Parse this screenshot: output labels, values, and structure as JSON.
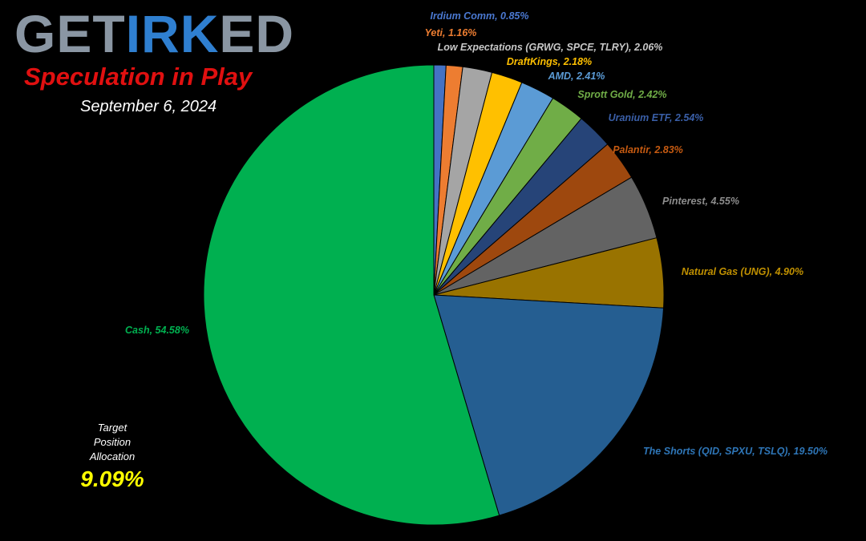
{
  "header": {
    "logo_part_a": "GET",
    "logo_part_b": "IRK",
    "logo_part_c": "ED",
    "subtitle": "Speculation in Play",
    "date": "September 6, 2024"
  },
  "target": {
    "line1": "Target",
    "line2": "Position",
    "line3": "Allocation",
    "value": "9.09%"
  },
  "chart_data": {
    "type": "pie",
    "start_angle_deg": 0,
    "direction": "clockwise",
    "slices": [
      {
        "label": "Irdium Comm, 0.85%",
        "value": 0.85,
        "color": "#4472c4"
      },
      {
        "label": "Yeti, 1.16%",
        "value": 1.16,
        "color": "#ed7d31"
      },
      {
        "label": "Low Expectations (GRWG, SPCE, TLRY), 2.06%",
        "value": 2.06,
        "color": "#a5a5a5"
      },
      {
        "label": "DraftKings, 2.18%",
        "value": 2.18,
        "color": "#ffc000"
      },
      {
        "label": "AMD, 2.41%",
        "value": 2.41,
        "color": "#5b9bd5"
      },
      {
        "label": "Sprott Gold, 2.42%",
        "value": 2.42,
        "color": "#70ad47"
      },
      {
        "label": "Uranium ETF, 2.54%",
        "value": 2.54,
        "color": "#264478"
      },
      {
        "label": "Palantir, 2.83%",
        "value": 2.83,
        "color": "#9e480e"
      },
      {
        "label": "Pinterest, 4.55%",
        "value": 4.55,
        "color": "#636363"
      },
      {
        "label": "Natural Gas (UNG), 4.90%",
        "value": 4.9,
        "color": "#997300"
      },
      {
        "label": "The Shorts (QID, SPXU, TSLQ), 19.50%",
        "value": 19.5,
        "color": "#255e91"
      },
      {
        "label": "Cash, 54.58%",
        "value": 54.58,
        "color": "#00b050"
      }
    ],
    "label_colors": {
      "Irdium Comm, 0.85%": "#4a78d0",
      "Yeti, 1.16%": "#ed7d31",
      "Low Expectations (GRWG, SPCE, TLRY), 2.06%": "#c8c8c8",
      "DraftKings, 2.18%": "#ffc000",
      "AMD, 2.41%": "#5b9bd5",
      "Sprott Gold, 2.42%": "#70ad47",
      "Uranium ETF, 2.54%": "#3a5fa8",
      "Palantir, 2.83%": "#c55a11",
      "Pinterest, 4.55%": "#8c8c8c",
      "Natural Gas (UNG), 4.90%": "#c09000",
      "The Shorts (QID, SPXU, TSLQ), 19.50%": "#2e75b6",
      "Cash, 54.58%": "#00b050"
    }
  }
}
